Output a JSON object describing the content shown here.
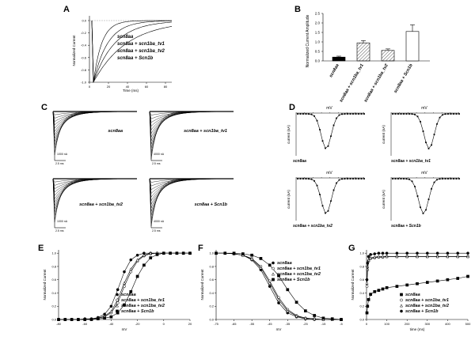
{
  "letters": {
    "A": "A",
    "B": "B",
    "C": "C",
    "D": "D",
    "E": "E",
    "F": "F",
    "G": "G"
  },
  "panelA": {
    "ylabel": "Normalized Current",
    "xlabel": "Time (ms)",
    "yticks": [
      "0.0",
      "-0.2",
      "-0.4",
      "-0.6",
      "-0.8",
      "-1.0"
    ],
    "xticks": [
      "0",
      "20",
      "40",
      "60",
      "80"
    ],
    "legend": [
      "scn8aa",
      "scn8aa + scn1ba_tv1",
      "scn8aa + scn1ba_tv2",
      "scn8aa + Scn1b"
    ]
  },
  "panelB": {
    "ylabel": "Normalized Current Amplitude",
    "yticks": [
      "0.0",
      "0.5",
      "1.0",
      "1.5",
      "2.0",
      "2.5"
    ],
    "categories": [
      "scn8aa",
      "scn8aa + scn1ba_tv1",
      "scn8aa + scn1ba_tv2",
      "scn8aa + Scn1b"
    ]
  },
  "panelC": {
    "labels": [
      "scn8aa",
      "scn8aa + scn1ba_tv1",
      "scn8aa + scn1ba_tv2",
      "scn8aa + Scn1b"
    ],
    "scale_y": [
      "1000 nA",
      "4000 nA",
      "1000 nA",
      "4000 nA"
    ],
    "scale_x": "2.5 ms"
  },
  "panelD": {
    "xlabel": "mV",
    "ylabel": "current (nA)",
    "labels": [
      "scn8aa",
      "scn8aa + scn1ba_tv1",
      "scn8aa + scn1ba_tv2",
      "scn8aa + Scn1b"
    ]
  },
  "panelE": {
    "ylabel": "Normalized Current",
    "xlabel": "mV",
    "yticks": [
      "0.0",
      "0.2",
      "0.4",
      "0.6",
      "0.8",
      "1.0"
    ],
    "xticks": [
      "-80",
      "-60",
      "-40",
      "-20",
      "0",
      "20"
    ],
    "legend": [
      "scn8aa",
      "scn8aa + scn1ba_tv1",
      "scn8aa + scn1ba_tv2",
      "scn8aa + Scn1b"
    ]
  },
  "panelF": {
    "ylabel": "Normalized Current",
    "xlabel": "mV",
    "yticks": [
      "0.0",
      "0.2",
      "0.4",
      "0.6",
      "0.8",
      "1.0"
    ],
    "xticks": [
      "-75",
      "-65",
      "-55",
      "-45",
      "-35",
      "-25",
      "-15",
      "-5"
    ],
    "legend": [
      "scn8aa",
      "scn8aa + scn1ba_tv1",
      "scn8aa + scn1ba_tv2",
      "scn8aa + Scn1b"
    ]
  },
  "panelG": {
    "ylabel": "Normalized Current",
    "xlabel": "time (ms)",
    "yticks": [
      "0.0",
      "0.2",
      "0.4",
      "0.6",
      "0.8",
      "1.0"
    ],
    "xticks": [
      "0",
      "100",
      "200",
      "300",
      "400",
      "500"
    ],
    "legend": [
      "scn8aa",
      "scn8aa + scn1ba_tv1",
      "scn8aa + scn1ba_tv2",
      "scn8aa + Scn1b"
    ]
  },
  "chart_data": [
    {
      "type": "bar",
      "panel": "B",
      "categories": [
        "scn8aa",
        "scn8aa + scn1ba_tv1",
        "scn8aa + scn1ba_tv2",
        "scn8aa + Scn1b"
      ],
      "values": [
        0.2,
        0.95,
        0.55,
        1.55
      ],
      "errors": [
        0.05,
        0.12,
        0.08,
        0.35
      ],
      "ylim": [
        0,
        2.5
      ],
      "ylabel": "Normalized Current Amplitude"
    },
    {
      "type": "line",
      "panel": "E",
      "xlabel": "mV",
      "ylabel": "Normalized Current",
      "xlim": [
        -80,
        20
      ],
      "ylim": [
        0,
        1.05
      ],
      "x": [
        -80,
        -75,
        -70,
        -65,
        -60,
        -55,
        -50,
        -45,
        -40,
        -35,
        -30,
        -25,
        -20,
        -15,
        -10,
        -5,
        0,
        5,
        10,
        15,
        20
      ],
      "series": [
        {
          "name": "scn8aa",
          "values": [
            0,
            0,
            0,
            0,
            0.01,
            0.01,
            0.03,
            0.08,
            0.2,
            0.45,
            0.72,
            0.9,
            0.97,
            1,
            1,
            1,
            1,
            1,
            1,
            1,
            1
          ]
        },
        {
          "name": "scn8aa + scn1ba_tv1",
          "values": [
            0,
            0,
            0,
            0,
            0,
            0.01,
            0.02,
            0.04,
            0.1,
            0.25,
            0.5,
            0.72,
            0.88,
            0.96,
            0.99,
            1,
            1,
            1,
            1,
            1,
            1
          ]
        },
        {
          "name": "scn8aa + scn1ba_tv2",
          "values": [
            0,
            0,
            0,
            0,
            0,
            0.01,
            0.02,
            0.05,
            0.12,
            0.3,
            0.55,
            0.76,
            0.9,
            0.97,
            1,
            1,
            1,
            1,
            1,
            1,
            1
          ]
        },
        {
          "name": "scn8aa + Scn1b",
          "values": [
            0,
            0,
            0,
            0,
            0,
            0,
            0.01,
            0.02,
            0.04,
            0.1,
            0.22,
            0.42,
            0.65,
            0.82,
            0.93,
            0.98,
            1,
            1,
            1,
            1,
            1
          ]
        }
      ]
    },
    {
      "type": "line",
      "panel": "F",
      "xlabel": "mV",
      "ylabel": "Normalized Current",
      "xlim": [
        -75,
        -5
      ],
      "ylim": [
        0,
        1.05
      ],
      "x": [
        -75,
        -70,
        -65,
        -60,
        -55,
        -50,
        -45,
        -40,
        -35,
        -30,
        -25,
        -20,
        -15,
        -10,
        -5
      ],
      "series": [
        {
          "name": "scn8aa",
          "values": [
            1,
            1,
            0.99,
            0.97,
            0.9,
            0.75,
            0.5,
            0.25,
            0.1,
            0.04,
            0.01,
            0,
            0,
            0,
            0
          ]
        },
        {
          "name": "scn8aa + scn1ba_tv1",
          "values": [
            1,
            1,
            0.99,
            0.97,
            0.92,
            0.8,
            0.58,
            0.33,
            0.15,
            0.06,
            0.02,
            0.01,
            0,
            0,
            0
          ]
        },
        {
          "name": "scn8aa + scn1ba_tv2",
          "values": [
            1,
            1,
            0.99,
            0.97,
            0.91,
            0.78,
            0.55,
            0.3,
            0.13,
            0.05,
            0.02,
            0.01,
            0,
            0,
            0
          ]
        },
        {
          "name": "scn8aa + Scn1b",
          "values": [
            1,
            1,
            1,
            0.99,
            0.97,
            0.92,
            0.82,
            0.66,
            0.45,
            0.26,
            0.13,
            0.06,
            0.02,
            0.01,
            0
          ]
        }
      ]
    },
    {
      "type": "line",
      "panel": "G",
      "xlabel": "time (ms)",
      "ylabel": "Normalized Current",
      "xlim": [
        0,
        500
      ],
      "ylim": [
        0,
        1.05
      ],
      "x": [
        2,
        5,
        10,
        20,
        40,
        60,
        80,
        100,
        150,
        200,
        250,
        300,
        350,
        400,
        450,
        500
      ],
      "series": [
        {
          "name": "scn8aa",
          "values": [
            0.1,
            0.2,
            0.3,
            0.38,
            0.42,
            0.44,
            0.46,
            0.48,
            0.5,
            0.52,
            0.54,
            0.56,
            0.58,
            0.6,
            0.62,
            0.65
          ]
        },
        {
          "name": "scn8aa + scn1ba_tv1",
          "values": [
            0.5,
            0.75,
            0.88,
            0.92,
            0.93,
            0.94,
            0.94,
            0.95,
            0.95,
            0.95,
            0.95,
            0.95,
            0.95,
            0.95,
            0.95,
            0.95
          ]
        },
        {
          "name": "scn8aa + scn1ba_tv2",
          "values": [
            0.55,
            0.8,
            0.9,
            0.93,
            0.94,
            0.95,
            0.95,
            0.95,
            0.95,
            0.95,
            0.95,
            0.95,
            0.95,
            0.95,
            0.95,
            0.95
          ]
        },
        {
          "name": "scn8aa + Scn1b",
          "values": [
            0.6,
            0.85,
            0.95,
            0.98,
            0.99,
            1,
            1,
            1,
            1,
            1,
            1,
            1,
            1,
            1,
            1,
            1
          ]
        }
      ]
    }
  ]
}
